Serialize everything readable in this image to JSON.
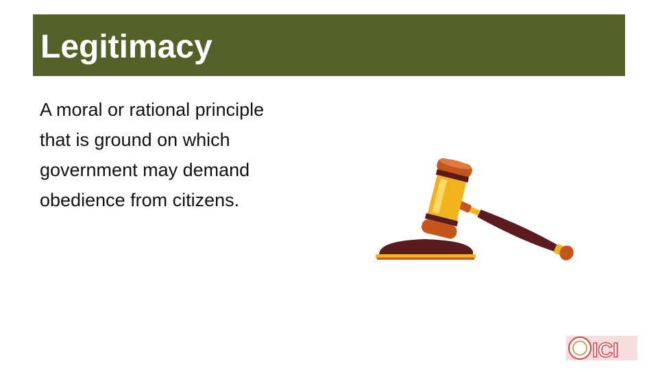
{
  "slide": {
    "title": "Legitimacy",
    "body_lines": [
      "A moral or rational principle",
      "that is ground on which",
      "government may demand",
      "obedience from citizens."
    ]
  },
  "images": {
    "gavel": "gavel-illustration",
    "logo": "ici-logo"
  },
  "colors": {
    "title_bar": "#536129",
    "title_text": "#ffffff",
    "body_text": "#111111",
    "gavel_gold": "#f2b21c",
    "gavel_wood": "#5a1a1e",
    "gavel_copper": "#c4561b",
    "logo_red": "#e0202a"
  },
  "logo_text": "ICI"
}
